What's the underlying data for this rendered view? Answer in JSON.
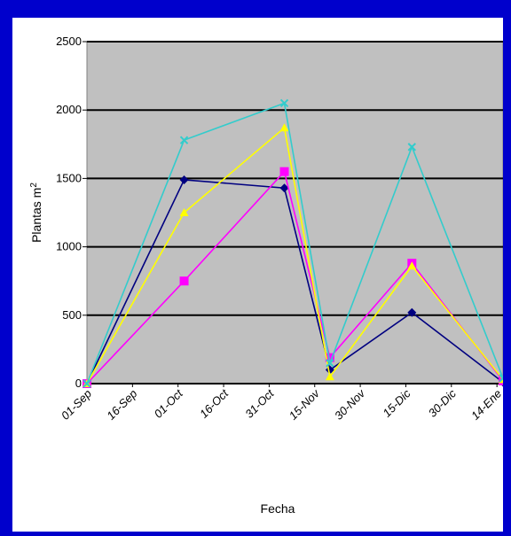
{
  "colors": {
    "frame_border": "#0000cc",
    "plot_bg": "#c0c0c0",
    "gridline": "#000000"
  },
  "chart_data": {
    "type": "line",
    "xlabel": "Fecha",
    "ylabel": "Plantas m",
    "ylabel_superscript": "2",
    "ylim": [
      0,
      2500
    ],
    "yticks": [
      0,
      500,
      1000,
      1500,
      2000,
      2500
    ],
    "x_ticks": [
      "01-Sep",
      "16-Sep",
      "01-Oct",
      "16-Oct",
      "31-Oct",
      "15-Nov",
      "30-Nov",
      "15-Dic",
      "30-Dic",
      "14-Ene"
    ],
    "x_range": [
      "01-Sep",
      "16-Ene"
    ],
    "grid": "horizontal",
    "legend": "none",
    "series": [
      {
        "color": "#000080",
        "marker": "diamond",
        "points": [
          [
            "01-Sep",
            0
          ],
          [
            "03-Oct",
            1490
          ],
          [
            "05-Nov",
            1430
          ],
          [
            "20-Nov",
            100
          ],
          [
            "17-Dic",
            520
          ],
          [
            "16-Ene",
            10
          ]
        ]
      },
      {
        "color": "#ff00ff",
        "marker": "square",
        "points": [
          [
            "01-Sep",
            0
          ],
          [
            "03-Oct",
            750
          ],
          [
            "05-Nov",
            1550
          ],
          [
            "20-Nov",
            190
          ],
          [
            "17-Dic",
            880
          ],
          [
            "16-Ene",
            20
          ]
        ]
      },
      {
        "color": "#ffff00",
        "marker": "triangle",
        "points": [
          [
            "01-Sep",
            0
          ],
          [
            "03-Oct",
            1250
          ],
          [
            "05-Nov",
            1870
          ],
          [
            "20-Nov",
            50
          ],
          [
            "17-Dic",
            860
          ],
          [
            "16-Ene",
            30
          ]
        ]
      },
      {
        "color": "#33cccc",
        "marker": "x",
        "points": [
          [
            "01-Sep",
            0
          ],
          [
            "03-Oct",
            1780
          ],
          [
            "05-Nov",
            2050
          ],
          [
            "20-Nov",
            150
          ],
          [
            "17-Dic",
            1730
          ],
          [
            "16-Ene",
            40
          ]
        ]
      }
    ]
  }
}
